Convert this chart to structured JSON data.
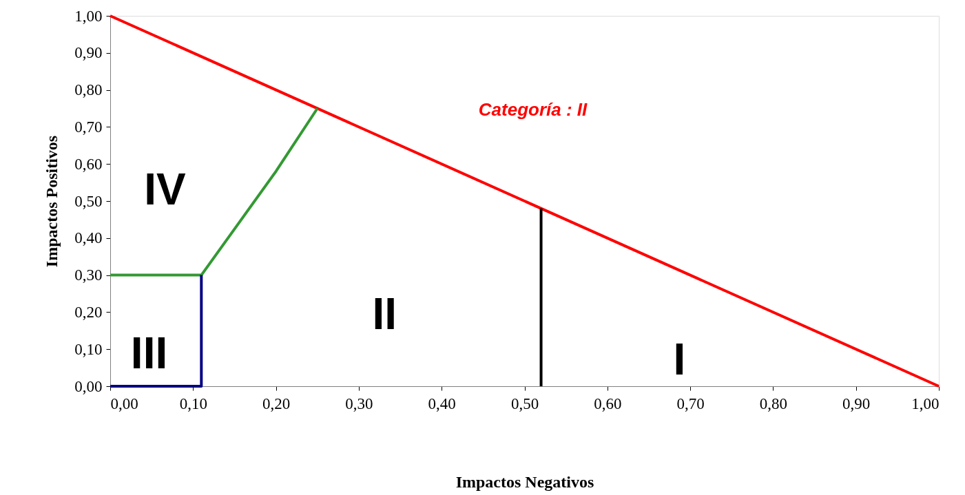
{
  "chart_data": {
    "type": "line",
    "xlabel": "Impactos Negativos",
    "ylabel": "Impactos Positivos",
    "series": [
      {
        "color": "#ff0000",
        "x": [
          0,
          1
        ],
        "values": [
          1,
          0
        ]
      },
      {
        "color": "#339933",
        "x": [
          0,
          0.11,
          0.2,
          0.25
        ],
        "values": [
          0.3,
          0.3,
          0.58,
          0.75
        ]
      },
      {
        "color": "#000080",
        "x": [
          0,
          0.11,
          0.11
        ],
        "values": [
          0,
          0,
          0.3
        ]
      },
      {
        "color": "#000000",
        "x": [
          0.52,
          0.52
        ],
        "values": [
          0,
          0.48
        ]
      }
    ],
    "xlim": [
      0,
      1
    ],
    "ylim": [
      0,
      1
    ],
    "xticks": [
      {
        "value": 0,
        "label": "0,00"
      },
      {
        "value": 0.1,
        "label": "0,10"
      },
      {
        "value": 0.2,
        "label": "0,20"
      },
      {
        "value": 0.3,
        "label": "0,30"
      },
      {
        "value": 0.4,
        "label": "0,40"
      },
      {
        "value": 0.5,
        "label": "0,50"
      },
      {
        "value": 0.6,
        "label": "0,60"
      },
      {
        "value": 0.7,
        "label": "0,70"
      },
      {
        "value": 0.8,
        "label": "0,80"
      },
      {
        "value": 0.9,
        "label": "0,90"
      },
      {
        "value": 1,
        "label": "1,00"
      }
    ],
    "yticks": [
      {
        "value": 0,
        "label": "0,00"
      },
      {
        "value": 0.1,
        "label": "0,10"
      },
      {
        "value": 0.2,
        "label": "0,20"
      },
      {
        "value": 0.3,
        "label": "0,30"
      },
      {
        "value": 0.4,
        "label": "0,40"
      },
      {
        "value": 0.5,
        "label": "0,50"
      },
      {
        "value": 0.6,
        "label": "0,60"
      },
      {
        "value": 0.7,
        "label": "0,70"
      },
      {
        "value": 0.8,
        "label": "0,80"
      },
      {
        "value": 0.9,
        "label": "0,90"
      },
      {
        "value": 1,
        "label": "1,00"
      }
    ],
    "annotations": [
      "Categoría  :  II",
      "IV",
      "III",
      "II",
      "I"
    ],
    "grid": false,
    "marker": "none",
    "line_style": "solid"
  }
}
